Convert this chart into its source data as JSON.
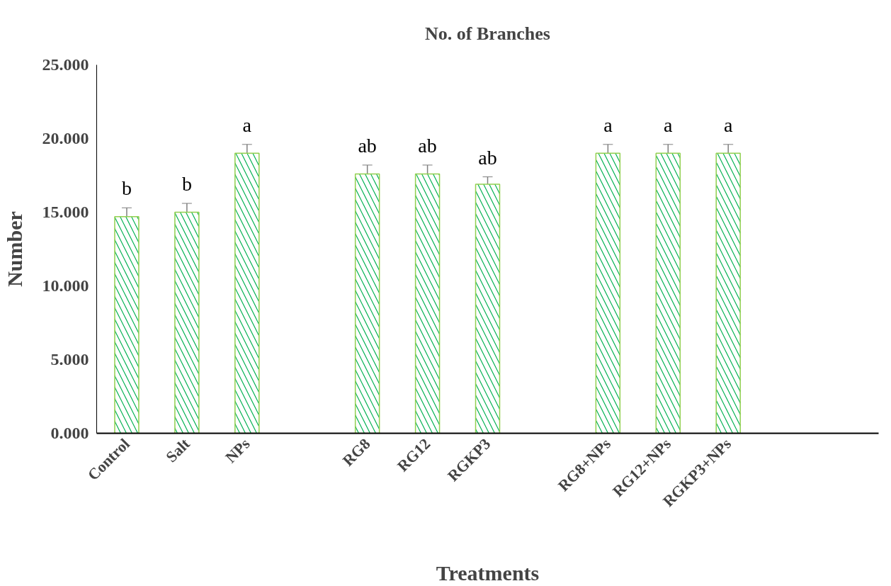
{
  "chart_data": {
    "type": "bar",
    "title": "No. of Branches",
    "xlabel": "Treatments",
    "ylabel": "Number",
    "categories": [
      "Control",
      "Salt",
      "NPs",
      null,
      "RG8",
      "RG12",
      "RGKP3",
      null,
      "RG8+NPs",
      "RG12+NPs",
      "RGKP3+NPs",
      null,
      null
    ],
    "values": [
      14.7,
      15.0,
      19.0,
      null,
      17.6,
      17.6,
      16.9,
      null,
      19.0,
      19.0,
      19.0,
      null,
      null
    ],
    "errors": [
      0.6,
      0.6,
      0.6,
      null,
      0.6,
      0.6,
      0.5,
      null,
      0.6,
      0.6,
      0.6,
      null,
      null
    ],
    "color": "#00b050",
    "ylim": [
      0,
      25
    ],
    "yticks": [
      {
        "value": 0,
        "label": "0.000"
      },
      {
        "value": 5,
        "label": "5.000"
      },
      {
        "value": 10,
        "label": "10.000"
      },
      {
        "value": 15,
        "label": "15.000"
      },
      {
        "value": 20,
        "label": "20.000"
      },
      {
        "value": 25,
        "label": "25.000"
      }
    ],
    "grid": false,
    "annotations": [
      {
        "text": "b",
        "x": "Control",
        "y": 15.3
      },
      {
        "text": "b",
        "x": "Salt",
        "y": 15.6
      },
      {
        "text": "a",
        "x": "NPs",
        "y": 19.6
      },
      {
        "text": "ab",
        "x": "RG8",
        "y": 18.2
      },
      {
        "text": "ab",
        "x": "RG12",
        "y": 18.2
      },
      {
        "text": "ab",
        "x": "RGKP3",
        "y": 17.4
      },
      {
        "text": "a",
        "x": "RG8+NPs",
        "y": 19.6
      },
      {
        "text": "a",
        "x": "RG12+NPs",
        "y": 19.6
      },
      {
        "text": "a",
        "x": "RGKP3+NPs",
        "y": 19.6
      }
    ]
  }
}
